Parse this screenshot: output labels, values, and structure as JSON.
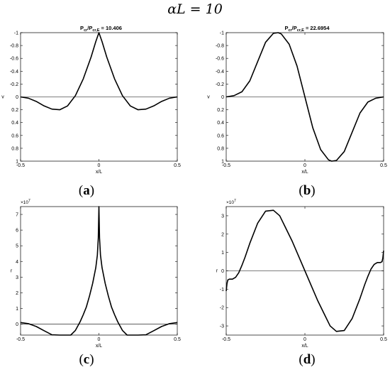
{
  "figure_title": "αL = 10",
  "chart_data": [
    {
      "type": "line",
      "panel": "(a)",
      "title_base": "P",
      "title_sub1": "cr",
      "title_mid": "/P",
      "title_sub2": "cr,E",
      "title_tail": " = 10.406",
      "xlabel": "x/L",
      "ylabel": "v",
      "xlim": [
        -0.5,
        0.5
      ],
      "ylim": [
        -1,
        1
      ],
      "y_reversed": true,
      "xticks": [
        "-0.5",
        "0",
        "0.5"
      ],
      "yticks": [
        "-1",
        "-0.8",
        "-0.6",
        "-0.4",
        "-0.2",
        "0",
        "0.2",
        "0.4",
        "0.6",
        "0.8",
        "1"
      ],
      "series": [
        {
          "x": [
            -0.5,
            -0.45,
            -0.4,
            -0.35,
            -0.3,
            -0.25,
            -0.2,
            -0.15,
            -0.1,
            -0.05,
            -0.02,
            0,
            0.02,
            0.05,
            0.1,
            0.15,
            0.2,
            0.25,
            0.3,
            0.35,
            0.4,
            0.45,
            0.5
          ],
          "y": [
            0,
            0.02,
            0.07,
            0.14,
            0.19,
            0.2,
            0.14,
            -0.02,
            -0.28,
            -0.62,
            -0.86,
            -1,
            -0.86,
            -0.62,
            -0.28,
            -0.02,
            0.14,
            0.2,
            0.19,
            0.14,
            0.07,
            0.02,
            0
          ]
        }
      ]
    },
    {
      "type": "line",
      "panel": "(b)",
      "title_base": "P",
      "title_sub1": "cr",
      "title_mid": "/P",
      "title_sub2": "cr,E",
      "title_tail": " = 22.6954",
      "xlabel": "x/L",
      "ylabel": "v",
      "xlim": [
        -0.5,
        0.5
      ],
      "ylim": [
        -1,
        1
      ],
      "y_reversed": true,
      "xticks": [
        "-0.5",
        "0",
        "0.5"
      ],
      "yticks": [
        "-1",
        "-0.8",
        "-0.6",
        "-0.4",
        "-0.2",
        "0",
        "0.2",
        "0.4",
        "0.6",
        "0.8",
        "1"
      ],
      "series": [
        {
          "x": [
            -0.5,
            -0.45,
            -0.4,
            -0.35,
            -0.3,
            -0.25,
            -0.2,
            -0.17,
            -0.15,
            -0.1,
            -0.05,
            0,
            0.05,
            0.1,
            0.15,
            0.17,
            0.2,
            0.25,
            0.3,
            0.35,
            0.4,
            0.45,
            0.5
          ],
          "y": [
            0,
            -0.02,
            -0.08,
            -0.25,
            -0.55,
            -0.85,
            -0.99,
            -1,
            -0.98,
            -0.82,
            -0.48,
            0,
            0.48,
            0.82,
            0.98,
            1,
            0.99,
            0.85,
            0.55,
            0.25,
            0.08,
            0.02,
            0
          ]
        }
      ]
    },
    {
      "type": "line",
      "panel": "(c)",
      "xlabel": "x/L",
      "ylabel": "r",
      "exponent": "×10",
      "exponent_power": "7",
      "xlim": [
        -0.5,
        0.5
      ],
      "ylim": [
        -0.7,
        7.5
      ],
      "xticks": [
        "-0.5",
        "0",
        "0.5"
      ],
      "yticks": [
        "0",
        "1",
        "2",
        "3",
        "4",
        "5",
        "6",
        "7"
      ],
      "series": [
        {
          "x": [
            -0.5,
            -0.45,
            -0.4,
            -0.35,
            -0.3,
            -0.25,
            -0.22,
            -0.18,
            -0.15,
            -0.12,
            -0.1,
            -0.08,
            -0.06,
            -0.04,
            -0.02,
            -0.01,
            -0.004,
            0,
            0.004,
            0.01,
            0.02,
            0.04,
            0.06,
            0.08,
            0.1,
            0.12,
            0.15,
            0.18,
            0.22,
            0.25,
            0.3,
            0.35,
            0.4,
            0.45,
            0.5
          ],
          "y": [
            0.1,
            0.03,
            -0.15,
            -0.42,
            -0.68,
            -0.88,
            -0.9,
            -0.75,
            -0.4,
            0.15,
            0.6,
            1.1,
            1.8,
            2.6,
            3.6,
            4.4,
            5.5,
            7.5,
            5.5,
            4.4,
            3.6,
            2.6,
            1.8,
            1.1,
            0.6,
            0.15,
            -0.4,
            -0.75,
            -0.9,
            -0.88,
            -0.68,
            -0.42,
            -0.15,
            0.03,
            0.1
          ]
        }
      ]
    },
    {
      "type": "line",
      "panel": "(d)",
      "xlabel": "x/L",
      "ylabel": "r",
      "exponent": "×10",
      "exponent_power": "7",
      "xlim": [
        -0.5,
        0.5
      ],
      "ylim": [
        -3.5,
        3.5
      ],
      "xticks": [
        "-0.5",
        "0",
        "0.5"
      ],
      "yticks": [
        "-3",
        "-2",
        "-1",
        "0",
        "1",
        "2",
        "3"
      ],
      "series": [
        {
          "x": [
            -0.5,
            -0.495,
            -0.49,
            -0.48,
            -0.46,
            -0.44,
            -0.42,
            -0.4,
            -0.38,
            -0.35,
            -0.3,
            -0.25,
            -0.2,
            -0.16,
            -0.12,
            -0.08,
            -0.04,
            0,
            0.04,
            0.08,
            0.12,
            0.16,
            0.2,
            0.25,
            0.3,
            0.35,
            0.38,
            0.4,
            0.42,
            0.44,
            0.46,
            0.48,
            0.49,
            0.495,
            0.5
          ],
          "y": [
            -1.1,
            -0.7,
            -0.5,
            -0.45,
            -0.45,
            -0.35,
            -0.1,
            0.3,
            0.75,
            1.5,
            2.6,
            3.25,
            3.3,
            3.0,
            2.3,
            1.6,
            0.8,
            0,
            -0.8,
            -1.6,
            -2.3,
            -3.0,
            -3.3,
            -3.25,
            -2.6,
            -1.5,
            -0.75,
            -0.3,
            0.1,
            0.35,
            0.45,
            0.45,
            0.5,
            0.7,
            1.1
          ]
        }
      ]
    }
  ]
}
